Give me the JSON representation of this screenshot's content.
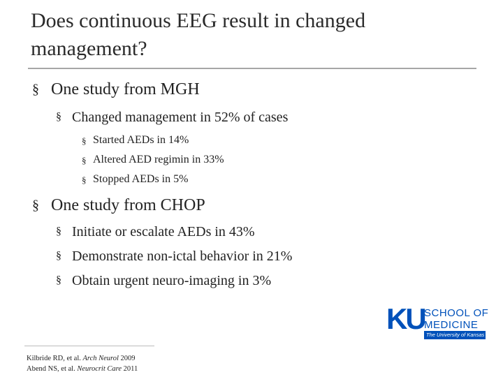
{
  "bullet_symbol": "§",
  "title": "Does continuous EEG result in changed management?",
  "sections": [
    {
      "text": "One study from MGH",
      "items": [
        {
          "text": "Changed management in 52% of cases",
          "items": [
            "Started AEDs in 14%",
            "Altered AED regimin in 33%",
            "Stopped AEDs in 5%"
          ]
        }
      ]
    },
    {
      "text": "One study from CHOP",
      "items": [
        {
          "text": "Initiate or escalate AEDs in 43%",
          "items": []
        },
        {
          "text": "Demonstrate non-ictal behavior in 21%",
          "items": []
        },
        {
          "text": "Obtain urgent neuro-imaging in 3%",
          "items": []
        }
      ]
    }
  ],
  "references": [
    {
      "authors": "Kilbride RD, et al.",
      "journal": "Arch Neurol",
      "year": "2009"
    },
    {
      "authors": "Abend NS, et al.",
      "journal": "Neurocrit Care",
      "year": "2011"
    }
  ],
  "logo": {
    "mark": "KU",
    "line1": "SCHOOL OF",
    "line2": "MEDICINE",
    "subtitle": "The University of Kansas"
  }
}
